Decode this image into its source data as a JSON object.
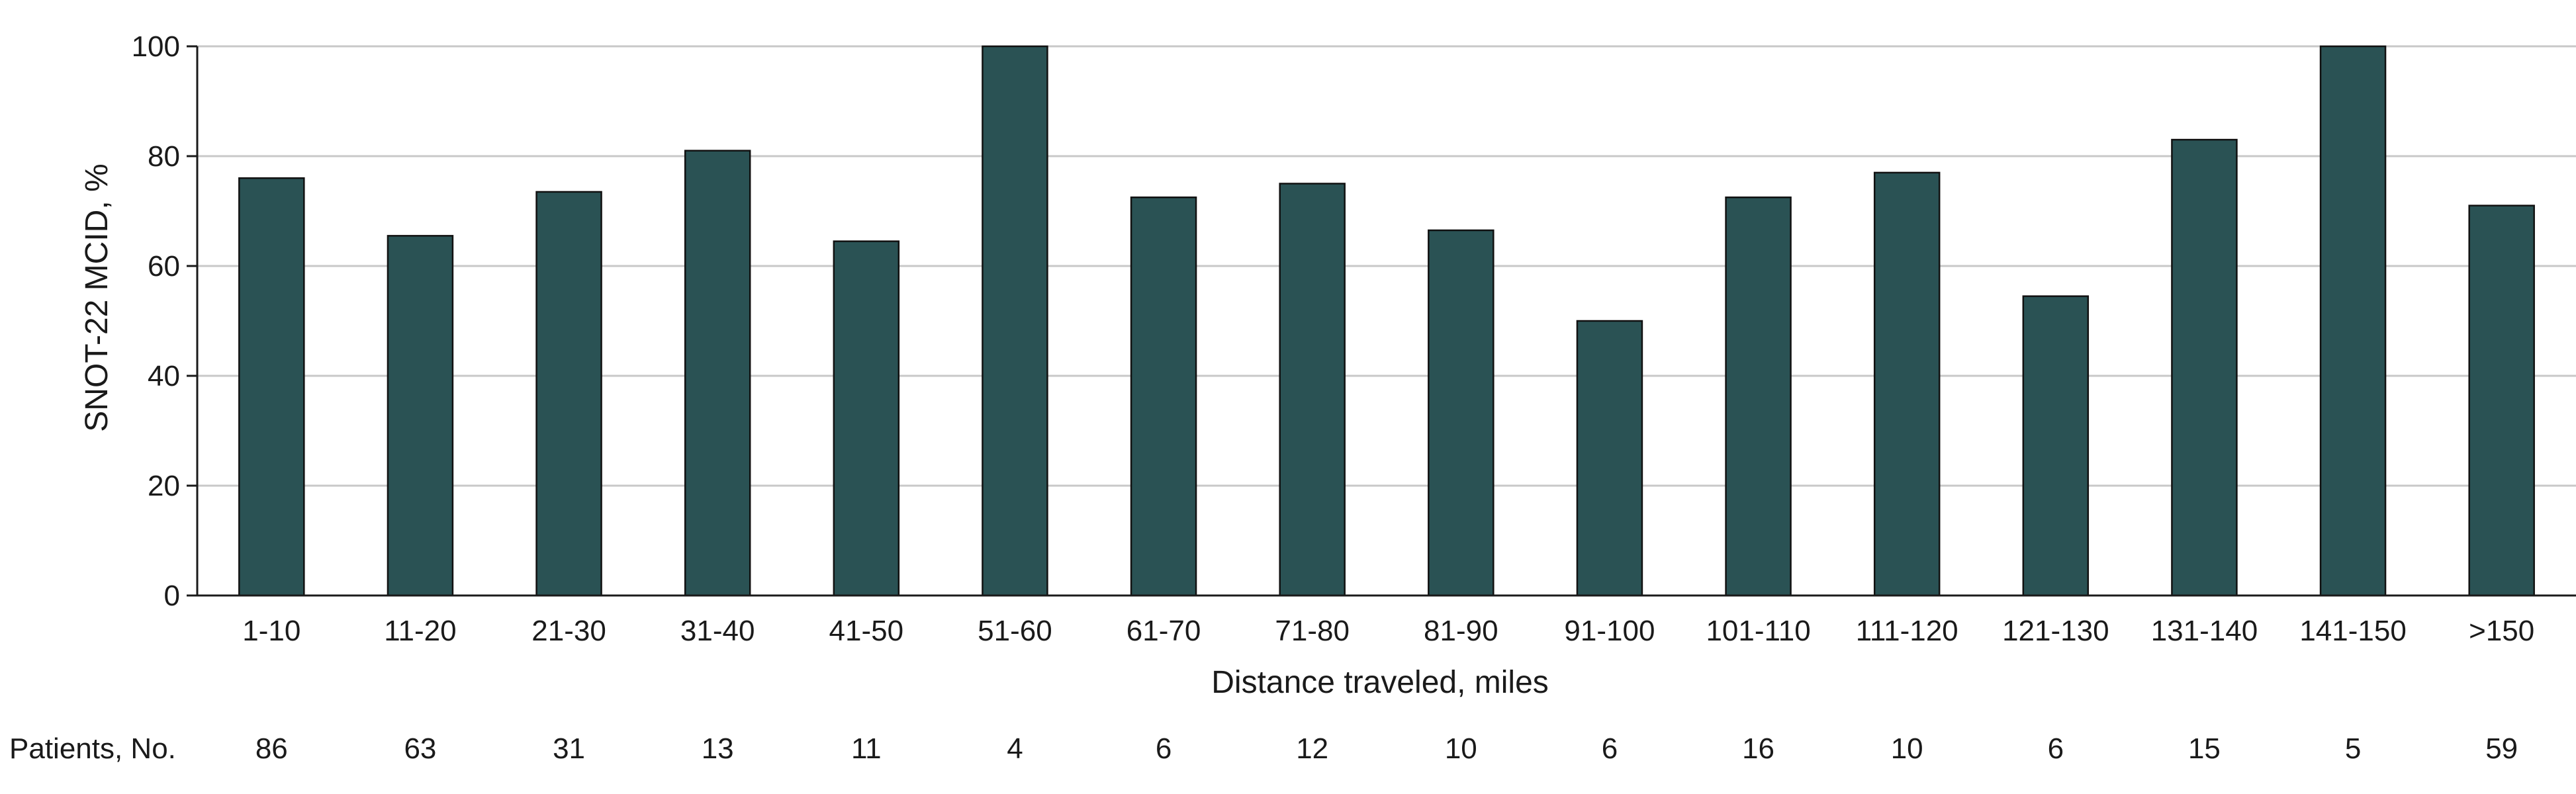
{
  "chart_data": {
    "type": "bar",
    "categories": [
      "1-10",
      "11-20",
      "21-30",
      "31-40",
      "41-50",
      "51-60",
      "61-70",
      "71-80",
      "81-90",
      "91-100",
      "101-110",
      "111-120",
      "121-130",
      "131-140",
      "141-150",
      ">150"
    ],
    "values": [
      76,
      65.5,
      73.5,
      81,
      64.5,
      100,
      72.5,
      75,
      66.5,
      50,
      72.5,
      77,
      54.5,
      83,
      100,
      71
    ],
    "xlabel": "Distance traveled, miles",
    "ylabel": "SNOT-22 MCID, %",
    "ylim": [
      0,
      100
    ],
    "yticks": [
      0,
      20,
      40,
      60,
      80,
      100
    ],
    "grid": true,
    "bar_color": "#2a5254",
    "patients_label": "Patients, No.",
    "patients": [
      "86",
      "63",
      "31",
      "13",
      "11",
      "4",
      "6",
      "12",
      "10",
      "6",
      "16",
      "10",
      "6",
      "15",
      "5",
      "59"
    ]
  }
}
